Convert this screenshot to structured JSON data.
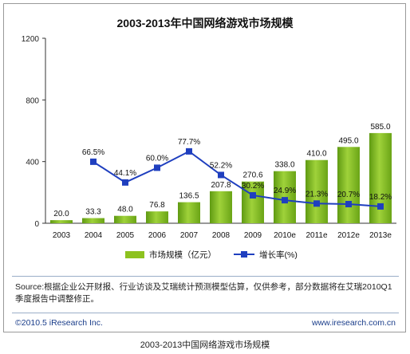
{
  "chart_data": {
    "type": "bar",
    "title": "2003-2013年中国网络游戏市场规模",
    "categories": [
      "2003",
      "2004",
      "2005",
      "2006",
      "2007",
      "2008",
      "2009",
      "2010e",
      "2011e",
      "2012e",
      "2013e"
    ],
    "ylim": [
      0,
      1200
    ],
    "yticks": [
      0,
      400,
      800,
      1200
    ],
    "series": [
      {
        "name": "市场规模（亿元）",
        "type": "bar",
        "color": "#8dc21f",
        "values": [
          20.0,
          33.3,
          48.0,
          76.8,
          136.5,
          207.8,
          270.6,
          338.0,
          410.0,
          495.0,
          585.0
        ],
        "labels": [
          "20.0",
          "33.3",
          "48.0",
          "76.8",
          "136.5",
          "207.8",
          "270.6",
          "338.0",
          "410.0",
          "495.0",
          "585.0"
        ]
      },
      {
        "name": "增长率(%)",
        "type": "line",
        "color": "#1f3fbf",
        "x": [
          "2004",
          "2005",
          "2006",
          "2007",
          "2008",
          "2009",
          "2010e",
          "2011e",
          "2012e",
          "2013e"
        ],
        "values": [
          66.5,
          44.1,
          60.0,
          77.7,
          52.2,
          30.2,
          24.9,
          21.3,
          20.7,
          18.2
        ],
        "labels": [
          "66.5%",
          "44.1%",
          "60.0%",
          "77.7%",
          "52.2%",
          "30.2%",
          "24.9%",
          "21.3%",
          "20.7%",
          "18.2%"
        ]
      }
    ],
    "legend_placement": "bottom"
  },
  "source_text": "Source:根据企业公开财报、行业访谈及艾瑞统计预测模型估算，仅供参考，部分数据将在艾瑞2010Q1季度报告中调整修正。",
  "copyright": "©2010.5 iResearch Inc.",
  "website": "www.iresearch.com.cn",
  "caption": "2003-2013中国网络游戏市场规模"
}
